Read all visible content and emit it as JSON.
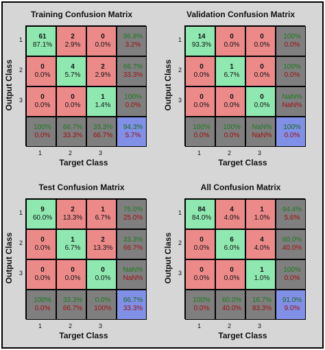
{
  "colors": {
    "correct": "#8fe8b0",
    "incorrect": "#ec8a8a",
    "summary": "#7f7f7f",
    "overall": "#7f90e6",
    "correct_text": "#1a7a1a",
    "incorrect_text": "#a01010"
  },
  "chart_data": [
    {
      "type": "heatmap",
      "title": "Training Confusion Matrix",
      "xlabel": "Target Class",
      "ylabel": "Output Class",
      "x_ticks": [
        "1",
        "2",
        "3"
      ],
      "y_ticks": [
        "1",
        "2",
        "3"
      ],
      "counts": [
        [
          61,
          2,
          0
        ],
        [
          0,
          4,
          2
        ],
        [
          0,
          0,
          1
        ]
      ],
      "percents": [
        [
          "87.1%",
          "2.9%",
          "0.0%"
        ],
        [
          "0.0%",
          "5.7%",
          "2.9%"
        ],
        [
          "0.0%",
          "0.0%",
          "1.4%"
        ]
      ],
      "row_summary": [
        [
          "96.8%",
          "3.2%"
        ],
        [
          "66.7%",
          "33.3%"
        ],
        [
          "100%",
          "0.0%"
        ]
      ],
      "col_summary": [
        [
          "100%",
          "0.0%"
        ],
        [
          "66.7%",
          "33.3%"
        ],
        [
          "33.3%",
          "66.7%"
        ]
      ],
      "overall": [
        "94.3%",
        "5.7%"
      ]
    },
    {
      "type": "heatmap",
      "title": "Validation Confusion Matrix",
      "xlabel": "Target Class",
      "ylabel": "Output Class",
      "x_ticks": [
        "1",
        "2",
        "3"
      ],
      "y_ticks": [
        "1",
        "2",
        "3"
      ],
      "counts": [
        [
          14,
          0,
          0
        ],
        [
          0,
          1,
          0
        ],
        [
          0,
          0,
          0
        ]
      ],
      "percents": [
        [
          "93.3%",
          "0.0%",
          "0.0%"
        ],
        [
          "0.0%",
          "6.7%",
          "0.0%"
        ],
        [
          "0.0%",
          "0.0%",
          "0.0%"
        ]
      ],
      "row_summary": [
        [
          "100%",
          "0.0%"
        ],
        [
          "100%",
          "0.0%"
        ],
        [
          "NaN%",
          "NaN%"
        ]
      ],
      "col_summary": [
        [
          "100%",
          "0.0%"
        ],
        [
          "100%",
          "0.0%"
        ],
        [
          "NaN%",
          "NaN%"
        ]
      ],
      "overall": [
        "100%",
        "0.0%"
      ]
    },
    {
      "type": "heatmap",
      "title": "Test Confusion Matrix",
      "xlabel": "Target Class",
      "ylabel": "Output Class",
      "x_ticks": [
        "1",
        "2",
        "3"
      ],
      "y_ticks": [
        "1",
        "2",
        "3"
      ],
      "counts": [
        [
          9,
          2,
          1
        ],
        [
          0,
          1,
          2
        ],
        [
          0,
          0,
          0
        ]
      ],
      "percents": [
        [
          "60.0%",
          "13.3%",
          "6.7%"
        ],
        [
          "0.0%",
          "6.7%",
          "13.3%"
        ],
        [
          "0.0%",
          "0.0%",
          "0.0%"
        ]
      ],
      "row_summary": [
        [
          "75.0%",
          "25.0%"
        ],
        [
          "33.3%",
          "66.7%"
        ],
        [
          "NaN%",
          "NaN%"
        ]
      ],
      "col_summary": [
        [
          "100%",
          "0.0%"
        ],
        [
          "33.3%",
          "66.7%"
        ],
        [
          "0.0%",
          "100%"
        ]
      ],
      "overall": [
        "66.7%",
        "33.3%"
      ]
    },
    {
      "type": "heatmap",
      "title": "All Confusion Matrix",
      "xlabel": "Target Class",
      "ylabel": "Output Class",
      "x_ticks": [
        "1",
        "2",
        "3"
      ],
      "y_ticks": [
        "1",
        "2",
        "3"
      ],
      "counts": [
        [
          84,
          4,
          1
        ],
        [
          0,
          6,
          4
        ],
        [
          0,
          0,
          1
        ]
      ],
      "percents": [
        [
          "84.0%",
          "4.0%",
          "1.0%"
        ],
        [
          "0.0%",
          "6.0%",
          "4.0%"
        ],
        [
          "0.0%",
          "0.0%",
          "1.0%"
        ]
      ],
      "row_summary": [
        [
          "94.4%",
          "5.6%"
        ],
        [
          "60.0%",
          "40.0%"
        ],
        [
          "100%",
          "0.0%"
        ]
      ],
      "col_summary": [
        [
          "100%",
          "0.0%"
        ],
        [
          "60.0%",
          "40.0%"
        ],
        [
          "16.7%",
          "83.3%"
        ]
      ],
      "overall": [
        "91.0%",
        "9.0%"
      ]
    }
  ]
}
